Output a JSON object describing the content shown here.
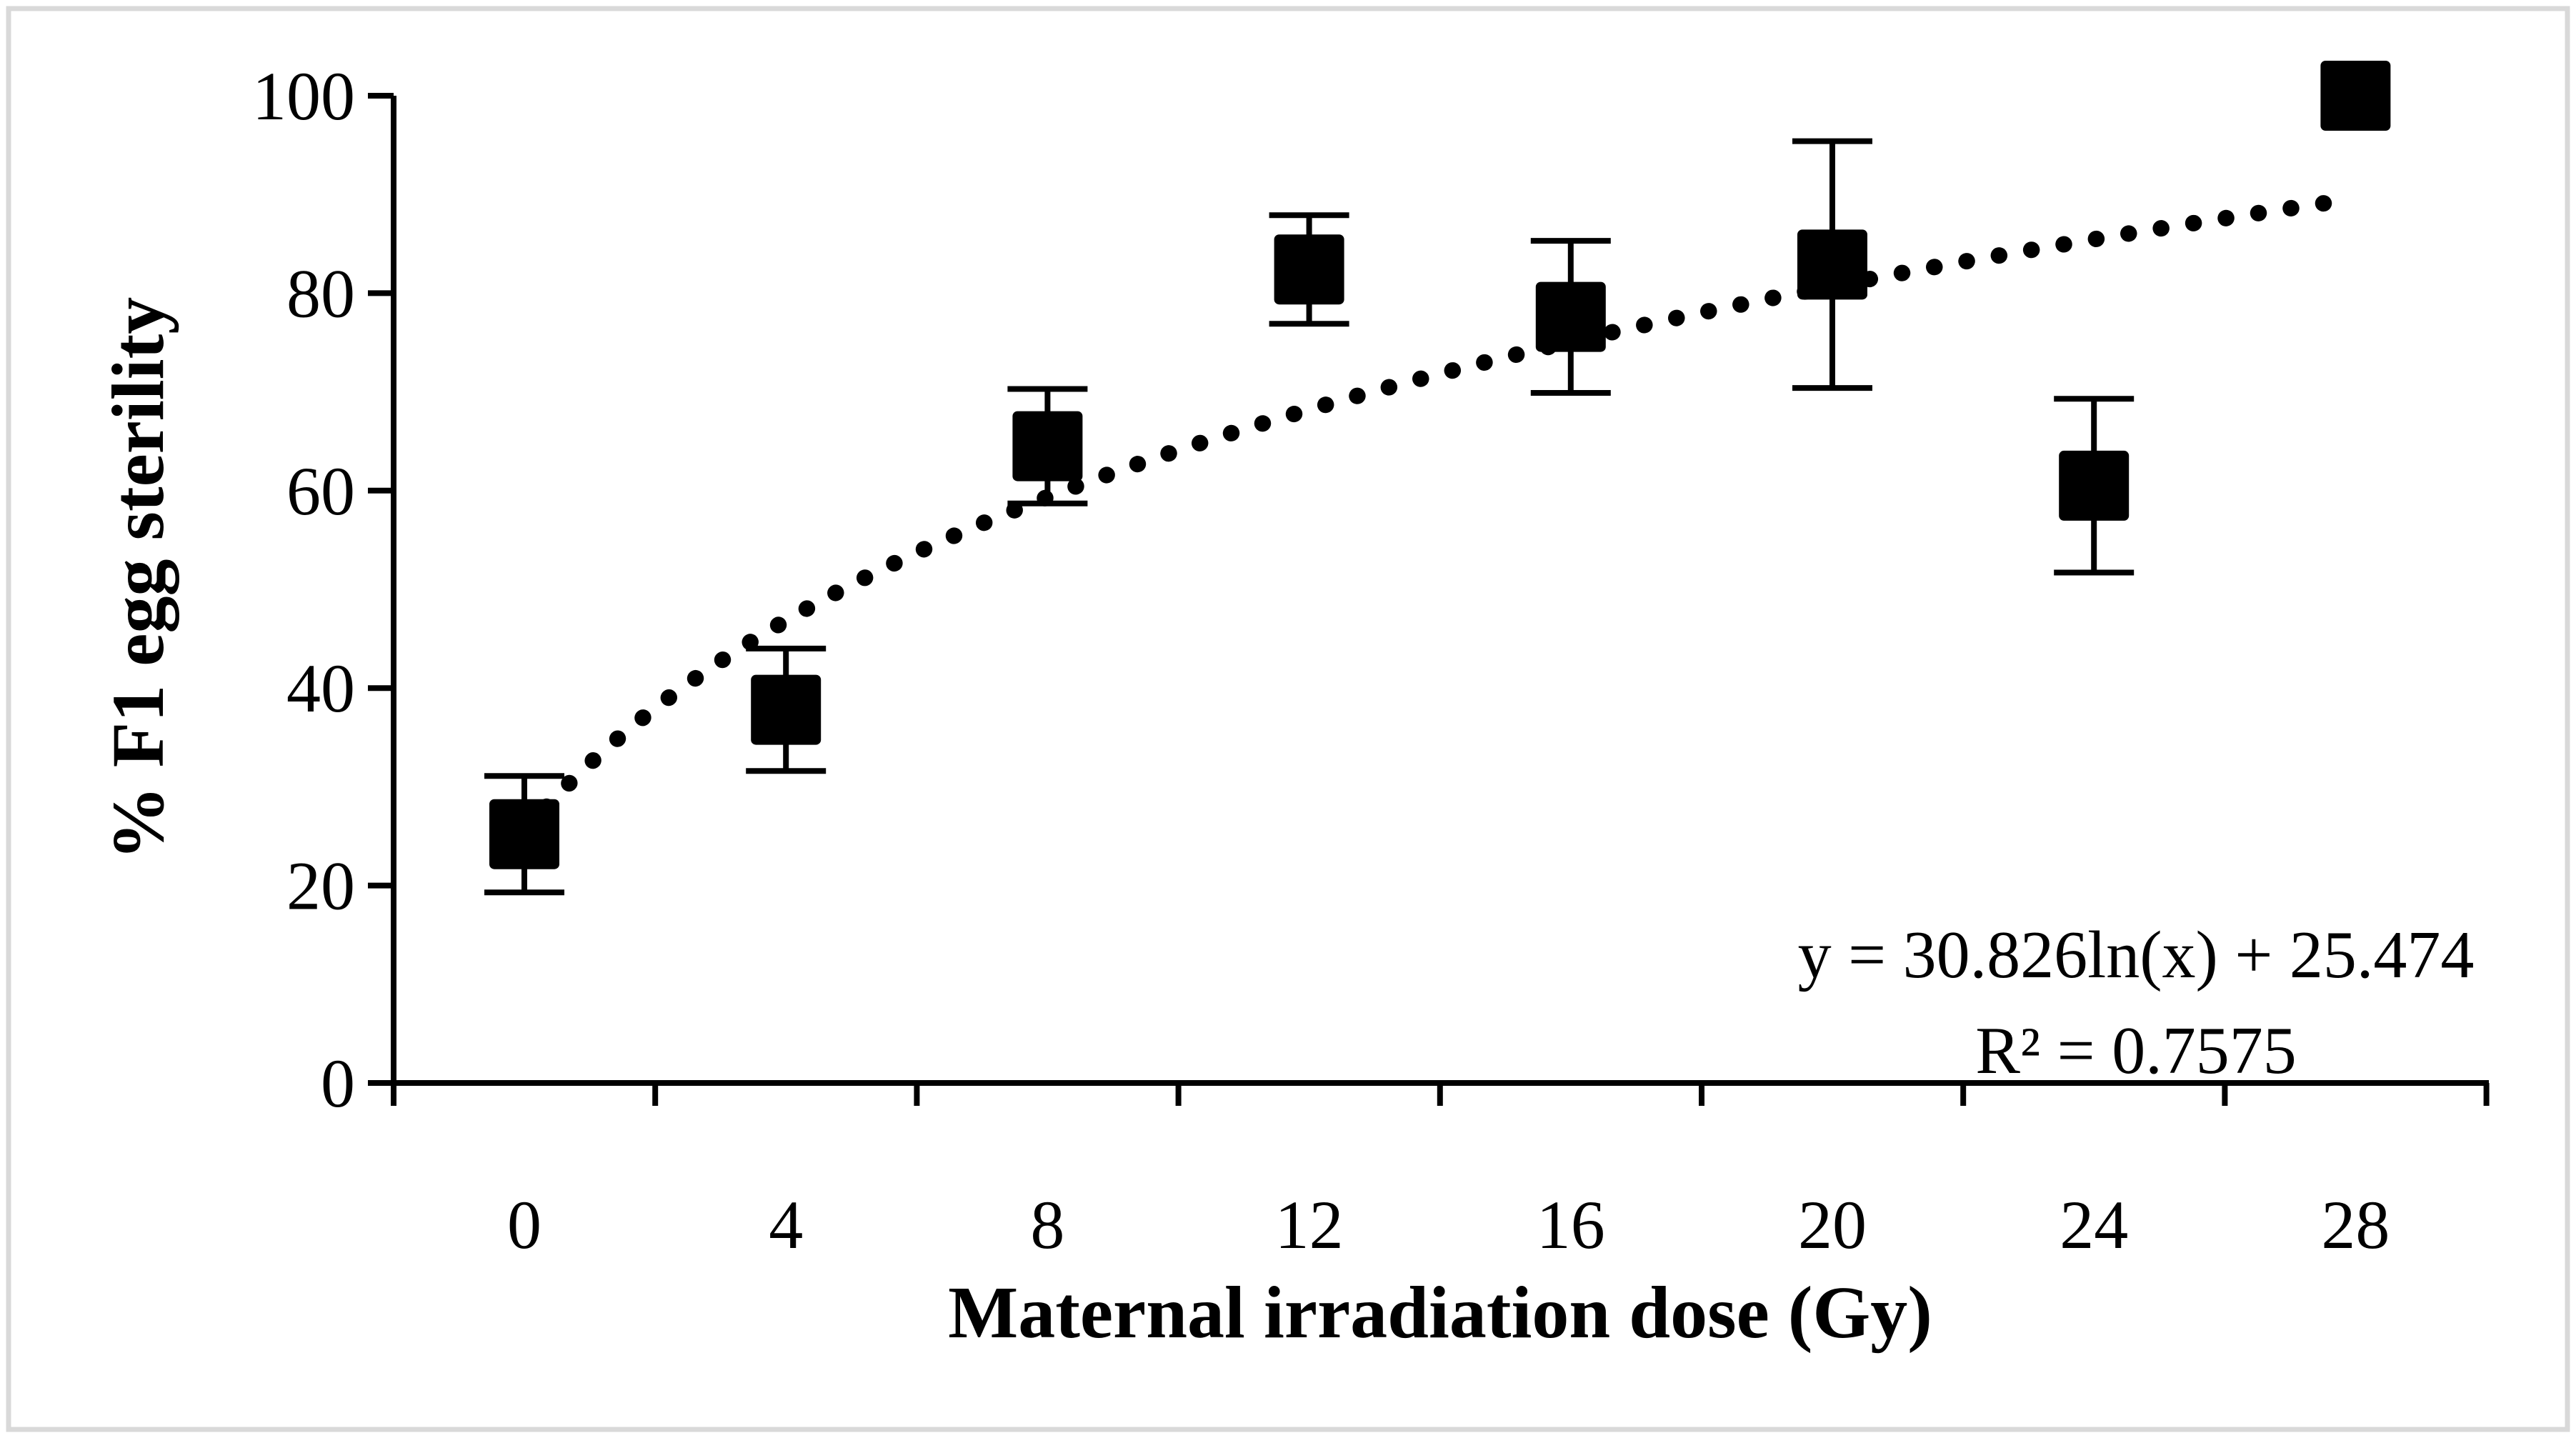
{
  "chart_data": {
    "type": "scatter",
    "title": "",
    "xlabel": "Maternal irradiation dose (Gy)",
    "ylabel": "% F1 egg sterility",
    "x_ticks": [
      0,
      4,
      8,
      12,
      16,
      20,
      24,
      28
    ],
    "y_ticks": [
      0,
      20,
      40,
      60,
      80,
      100
    ],
    "xlim_categories": [
      0,
      28
    ],
    "ylim": [
      0,
      100
    ],
    "grid": "off",
    "legend": "none",
    "series": [
      {
        "name": "% F1 egg sterility",
        "marker": "filled-square",
        "error_bars": "vertical",
        "points": [
          {
            "x": 0,
            "y": 25.2,
            "err": 5.9
          },
          {
            "x": 4,
            "y": 37.8,
            "err": 6.2
          },
          {
            "x": 8,
            "y": 64.5,
            "err": 5.8
          },
          {
            "x": 12,
            "y": 82.4,
            "err": 5.5
          },
          {
            "x": 16,
            "y": 77.6,
            "err": 7.7
          },
          {
            "x": 20,
            "y": 82.9,
            "err": 12.5
          },
          {
            "x": 24,
            "y": 60.5,
            "err": 8.8
          },
          {
            "x": 28,
            "y": 100.0,
            "err": null
          }
        ]
      }
    ],
    "trendline": {
      "type": "logarithmic",
      "style": "dotted",
      "coef_a": 30.826,
      "coef_b": 25.474,
      "index_range": [
        1,
        8
      ],
      "equation_label": "y = 30.826ln(x) + 25.474",
      "r2_label": "R² = 0.7575"
    },
    "colors": {
      "marker": "#000000",
      "axis": "#000000",
      "trendline": "#000000",
      "equation_text": "#9c9c9c",
      "figure_border": "#d9d9d9",
      "background": "#ffffff"
    }
  }
}
